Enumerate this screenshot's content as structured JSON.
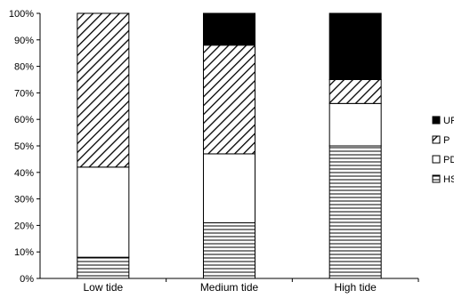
{
  "chart_data": {
    "type": "bar",
    "stacked": true,
    "normalized": true,
    "categories": [
      "Low tide",
      "Medium tide",
      "High tide"
    ],
    "series": [
      {
        "name": "HS",
        "pattern": "horizontal-lines",
        "values": [
          8,
          21,
          50
        ]
      },
      {
        "name": "PD",
        "pattern": "solid-white",
        "values": [
          34,
          26,
          16
        ]
      },
      {
        "name": "P",
        "pattern": "diagonal-hatch",
        "values": [
          58,
          41,
          9
        ]
      },
      {
        "name": "UF",
        "pattern": "solid-black",
        "values": [
          0,
          12,
          25
        ]
      }
    ],
    "legend_labels": [
      "UF",
      "P",
      "PD",
      "HS"
    ],
    "y_ticks": [
      "0%",
      "10%",
      "20%",
      "30%",
      "40%",
      "50%",
      "60%",
      "70%",
      "80%",
      "90%",
      "100%"
    ],
    "ylim": [
      0,
      100
    ],
    "legend_position": "right",
    "grid": false,
    "colors": {
      "ink": "#000000",
      "fill": "#ffffff"
    }
  }
}
